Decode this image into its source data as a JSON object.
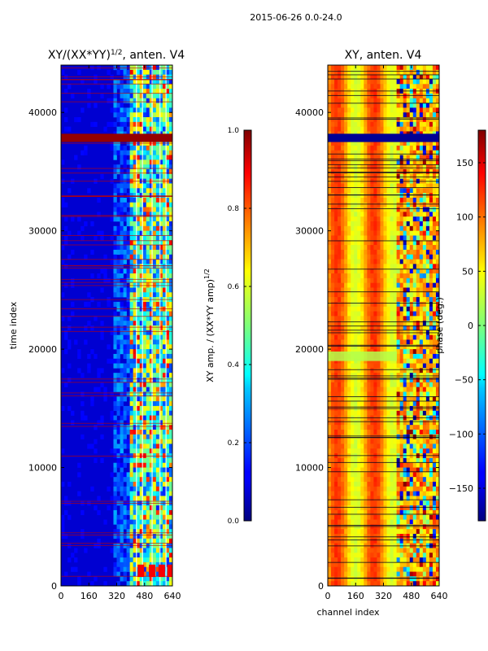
{
  "figure_title": "2015-06-26 0.0-24.0",
  "chart_data": [
    {
      "type": "heatmap",
      "title": "XY/(XX*YY)",
      "title_superscript": "1/2",
      "title_suffix": ", anten. V4",
      "xlabel": "",
      "ylabel": "time index",
      "xlim": [
        0,
        640
      ],
      "ylim": [
        0,
        44000
      ],
      "xticks": [
        0,
        160,
        320,
        480,
        640
      ],
      "yticks": [
        0,
        10000,
        20000,
        30000,
        40000
      ],
      "yticklabels": [
        "0",
        "10000",
        "20000",
        "30000",
        "40000"
      ],
      "colormap": "jet",
      "colorbar": {
        "label": "XY amp. / (XX*YY amp)",
        "label_superscript": "1/2",
        "range": [
          0.0,
          1.0
        ],
        "ticks": [
          "0.0",
          "0.2",
          "0.4",
          "0.6",
          "0.8",
          "1.0"
        ]
      },
      "description_values": {
        "background_level": 0.05,
        "active_channel_band": [
          400,
          640
        ],
        "saturated_time_band": [
          37500,
          38200
        ]
      }
    },
    {
      "type": "heatmap",
      "title": "XY, anten. V4",
      "xlabel": "channel index",
      "ylabel": "",
      "xlim": [
        0,
        640
      ],
      "ylim": [
        0,
        44000
      ],
      "xticks": [
        0,
        160,
        320,
        480,
        640
      ],
      "yticks": [
        0,
        10000,
        20000,
        30000,
        40000
      ],
      "yticklabels": [
        "0",
        "10000",
        "20000",
        "30000",
        "40000"
      ],
      "colormap": "jet",
      "colorbar": {
        "label": "phase (deg.)",
        "range": [
          -180,
          180
        ],
        "ticks": [
          "−150",
          "−100",
          "−50",
          "0",
          "50",
          "100",
          "150"
        ],
        "tick_values": [
          -150,
          -100,
          -50,
          0,
          50,
          100,
          150
        ]
      }
    }
  ],
  "colors": {
    "axis": "#000000",
    "background": "#ffffff"
  }
}
